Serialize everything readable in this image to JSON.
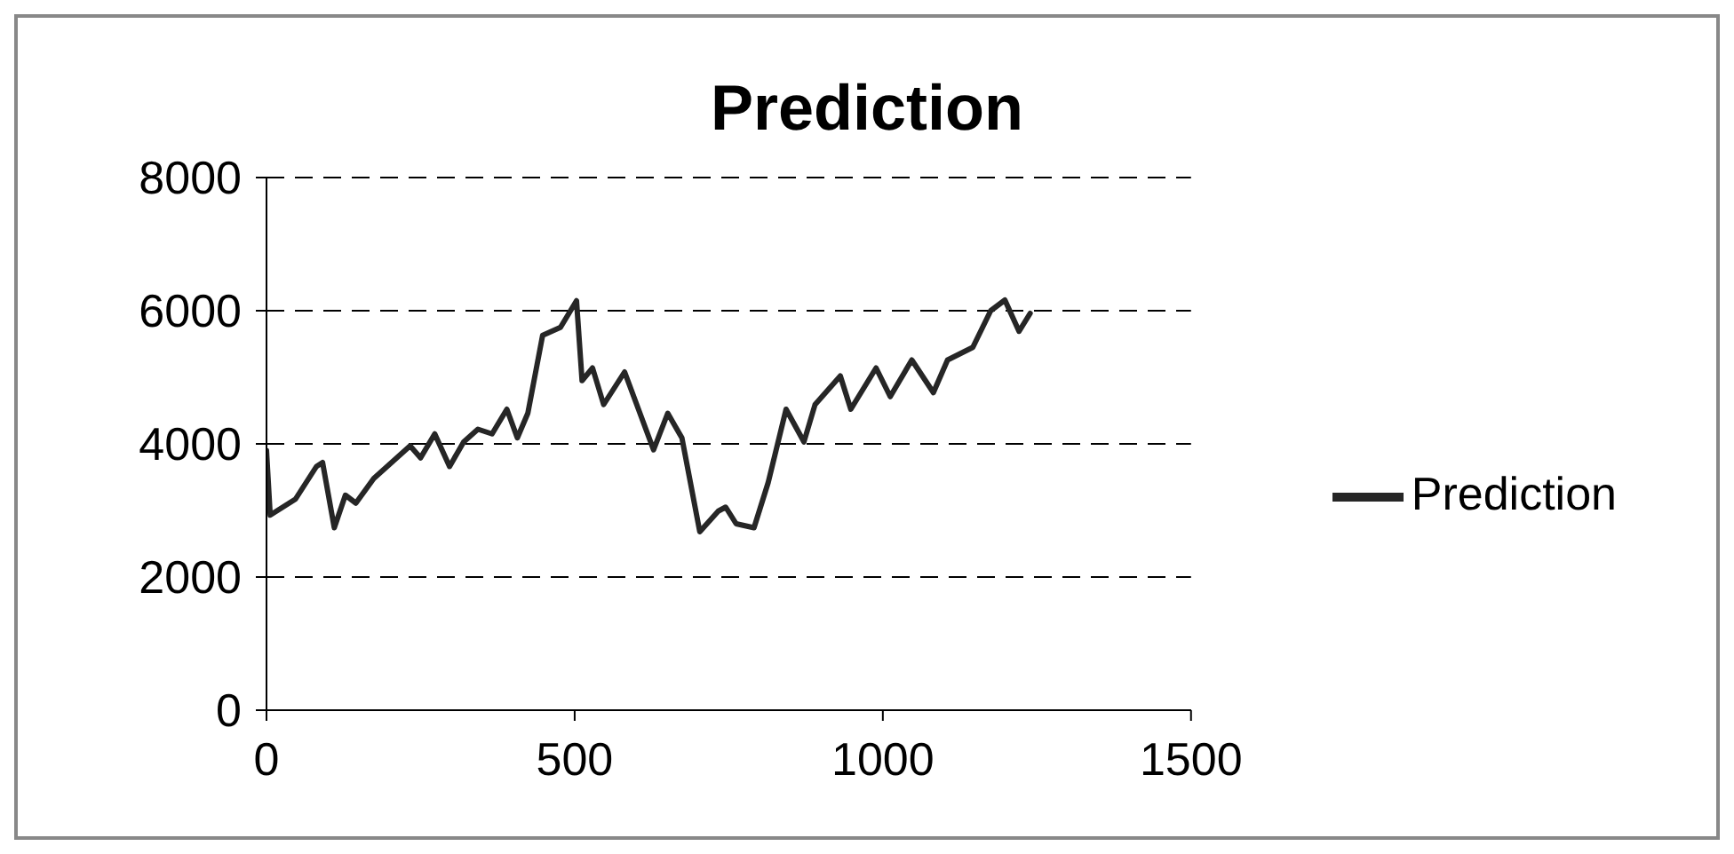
{
  "chart_data": {
    "type": "line",
    "title": "Prediction",
    "xlim": [
      0,
      1500
    ],
    "xticks": [
      0,
      500,
      1000,
      1500
    ],
    "ylim": [
      0,
      8000
    ],
    "yticks": [
      0,
      2000,
      4000,
      6000,
      8000
    ],
    "grid": "y",
    "legend": "right",
    "marker": "none",
    "line_style": "solid",
    "series": [
      {
        "name": "Prediction",
        "color": "#262626",
        "x": [
          0,
          6,
          47,
          81,
          91,
          110,
          128,
          145,
          174,
          233,
          250,
          273,
          297,
          320,
          343,
          366,
          390,
          407,
          424,
          448,
          477,
          503,
          512,
          529,
          547,
          581,
          628,
          651,
          674,
          703,
          733,
          745,
          762,
          791,
          814,
          843,
          872,
          890,
          931,
          948,
          989,
          1012,
          1047,
          1082,
          1105,
          1146,
          1175,
          1198,
          1221,
          1239
        ],
        "values": [
          3900,
          2930,
          3170,
          3660,
          3720,
          2740,
          3230,
          3110,
          3480,
          3970,
          3790,
          4150,
          3660,
          4030,
          4220,
          4150,
          4520,
          4090,
          4460,
          5630,
          5750,
          6150,
          4950,
          5140,
          4590,
          5080,
          3910,
          4460,
          4090,
          2680,
          2990,
          3050,
          2800,
          2740,
          3420,
          4520,
          4030,
          4590,
          5020,
          4520,
          5140,
          4710,
          5260,
          4770,
          5260,
          5450,
          6000,
          6160,
          5690,
          5960
        ]
      }
    ]
  }
}
